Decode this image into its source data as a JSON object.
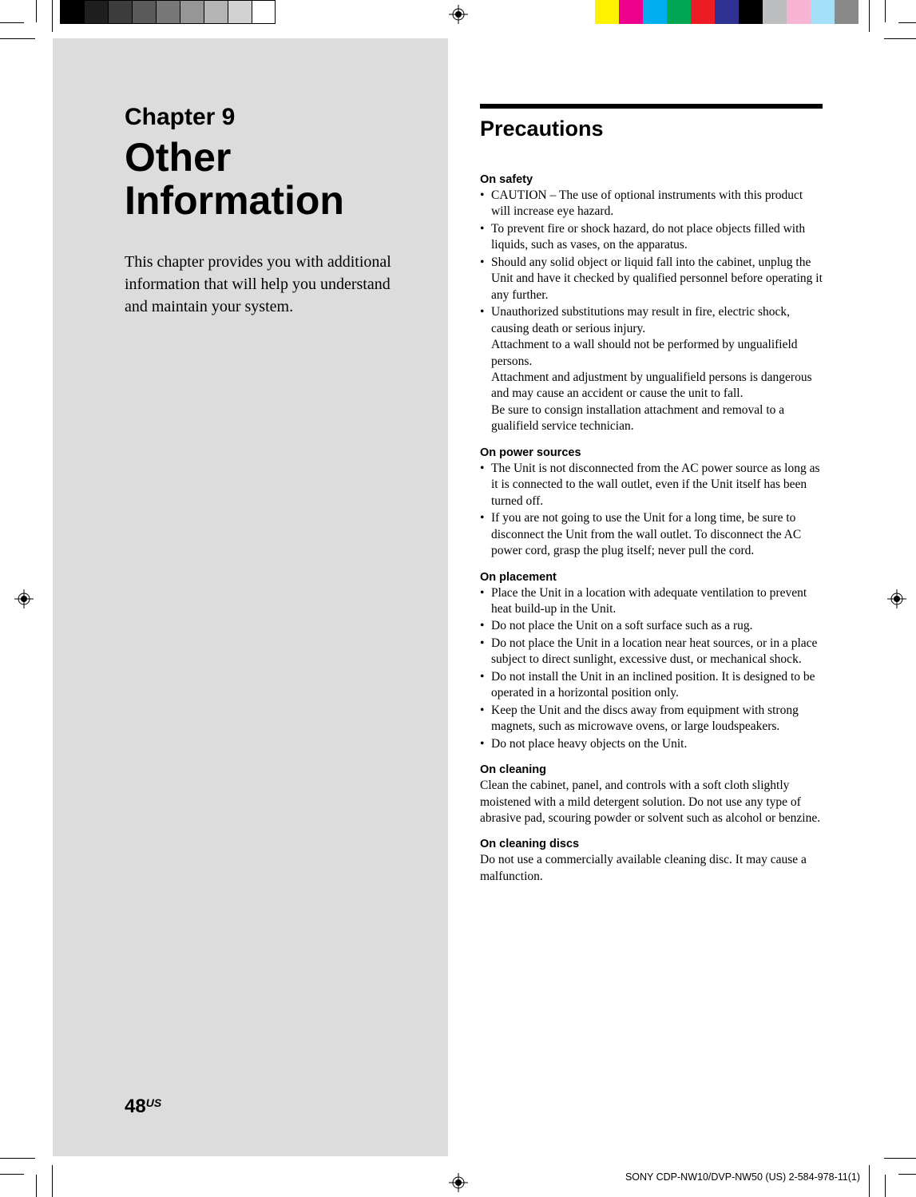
{
  "printmarks": {
    "graybar_colors": [
      "#000000",
      "#1f1f1f",
      "#3c3c3c",
      "#5a5a5a",
      "#787878",
      "#969696",
      "#b4b4b4",
      "#d2d2d2",
      "#ffffff"
    ],
    "graybar_border": "#000000",
    "colorbar_colors": [
      "#fff200",
      "#ec008c",
      "#00aeef",
      "#00a651",
      "#ed1c24",
      "#2e3192",
      "#000000",
      "#bcbec0",
      "#f8b4d3",
      "#a3dff7",
      "#898989"
    ]
  },
  "left": {
    "chapter_label": "Chapter 9",
    "chapter_title": "Other Information",
    "intro": "This chapter provides you with additional information that will help you understand and maintain your system."
  },
  "right": {
    "section_title": "Precautions",
    "groups": [
      {
        "head": "On safety",
        "type": "bullets",
        "items": [
          "CAUTION – The use of optional instruments with this product will increase eye hazard.",
          "To prevent fire or shock hazard, do not place objects filled with liquids, such as vases, on the apparatus.",
          "Should any solid object or liquid fall into the cabinet, unplug the Unit and have it checked by qualified personnel before operating it any further.",
          "Unauthorized substitutions may result in fire, electric shock, causing death or serious injury.\nAttachment to a wall should not be performed by ungualifield persons.\nAttachment and adjustment by ungualifield persons is dangerous and may cause an accident or cause the unit to fall.\nBe sure to consign installation attachment and removal to a gualifield service technician."
        ]
      },
      {
        "head": "On power sources",
        "type": "bullets",
        "items": [
          "The Unit is not disconnected from the AC power source as long as it is connected to the wall outlet, even if the Unit itself has been turned off.",
          "If you are not going to use the Unit for a long time, be sure to disconnect the Unit from the wall outlet. To disconnect the AC power cord, grasp the plug itself; never pull the cord."
        ]
      },
      {
        "head": "On placement",
        "type": "bullets",
        "items": [
          "Place the Unit in a location with adequate ventilation to prevent heat build-up in the Unit.",
          "Do not place the Unit on a soft surface such as a rug.",
          "Do not place the Unit in a location near heat sources, or in a place subject to direct sunlight, excessive dust, or mechanical shock.",
          "Do not install the Unit in an inclined position. It is designed to be operated in a horizontal position only.",
          "Keep the Unit and the discs away from equipment with strong magnets, such as microwave ovens, or large loudspeakers.",
          "Do not place heavy objects on the Unit."
        ]
      },
      {
        "head": "On cleaning",
        "type": "para",
        "text": "Clean the cabinet, panel, and controls with a soft cloth slightly moistened with a mild detergent solution. Do not use any type of abrasive pad, scouring powder or solvent such as alcohol or benzine."
      },
      {
        "head": "On cleaning discs",
        "type": "para",
        "text": "Do not use a commercially available cleaning disc. It may cause a malfunction."
      }
    ]
  },
  "footer": {
    "page_number": "48",
    "page_suffix": "US",
    "doc_id": "SONY CDP-NW10/DVP-NW50 (US) 2-584-978-11(1)"
  }
}
